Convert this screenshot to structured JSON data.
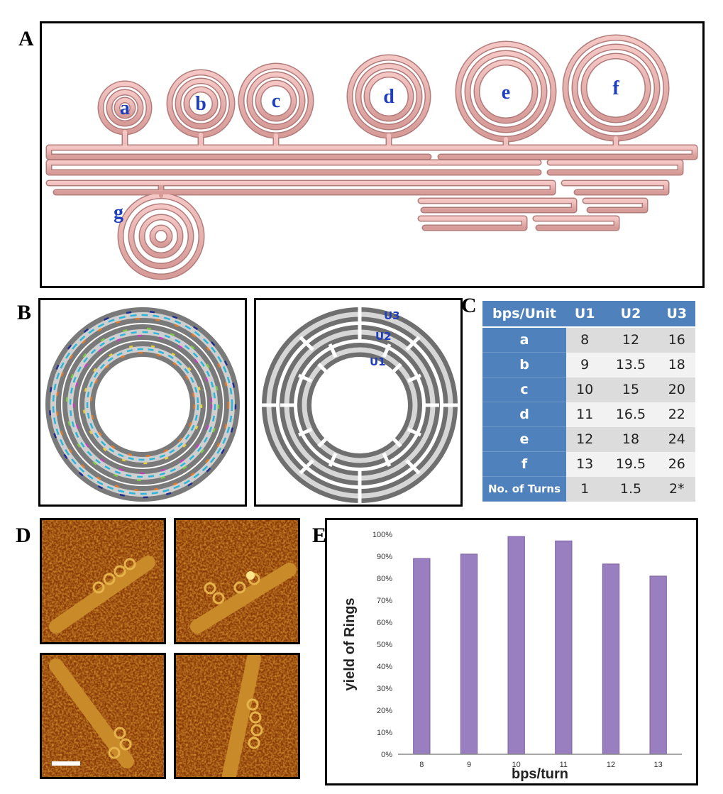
{
  "panels": {
    "A": "A",
    "B": "B",
    "C": "C",
    "D": "D",
    "E": "E"
  },
  "panelA": {
    "ring_labels": [
      "a",
      "b",
      "c",
      "d",
      "e",
      "f",
      "g"
    ]
  },
  "panelB": {
    "unit_labels": [
      "U3",
      "U2",
      "U1"
    ]
  },
  "panelC": {
    "headers": [
      "bps/Unit",
      "U1",
      "U2",
      "U3"
    ],
    "rows": [
      {
        "label": "a",
        "values": [
          "8",
          "12",
          "16"
        ]
      },
      {
        "label": "b",
        "values": [
          "9",
          "13.5",
          "18"
        ]
      },
      {
        "label": "c",
        "values": [
          "10",
          "15",
          "20"
        ]
      },
      {
        "label": "d",
        "values": [
          "11",
          "16.5",
          "22"
        ]
      },
      {
        "label": "e",
        "values": [
          "12",
          "18",
          "24"
        ]
      },
      {
        "label": "f",
        "values": [
          "13",
          "19.5",
          "26"
        ]
      },
      {
        "label": "No. of Turns",
        "values": [
          "1",
          "1.5",
          "2*"
        ]
      }
    ]
  },
  "chart_data": {
    "type": "bar",
    "categories": [
      "8",
      "9",
      "10",
      "11",
      "12",
      "13"
    ],
    "values": [
      89,
      91,
      99,
      97,
      86.5,
      81
    ],
    "xlabel": "bps/turn",
    "ylabel": "yield of Rings",
    "ylim": [
      0,
      100
    ],
    "yticks": [
      "0%",
      "10%",
      "20%",
      "30%",
      "40%",
      "50%",
      "60%",
      "70%",
      "80%",
      "90%",
      "100%"
    ],
    "bar_color": "#9a7fc0",
    "grid": false,
    "legend": "none"
  }
}
